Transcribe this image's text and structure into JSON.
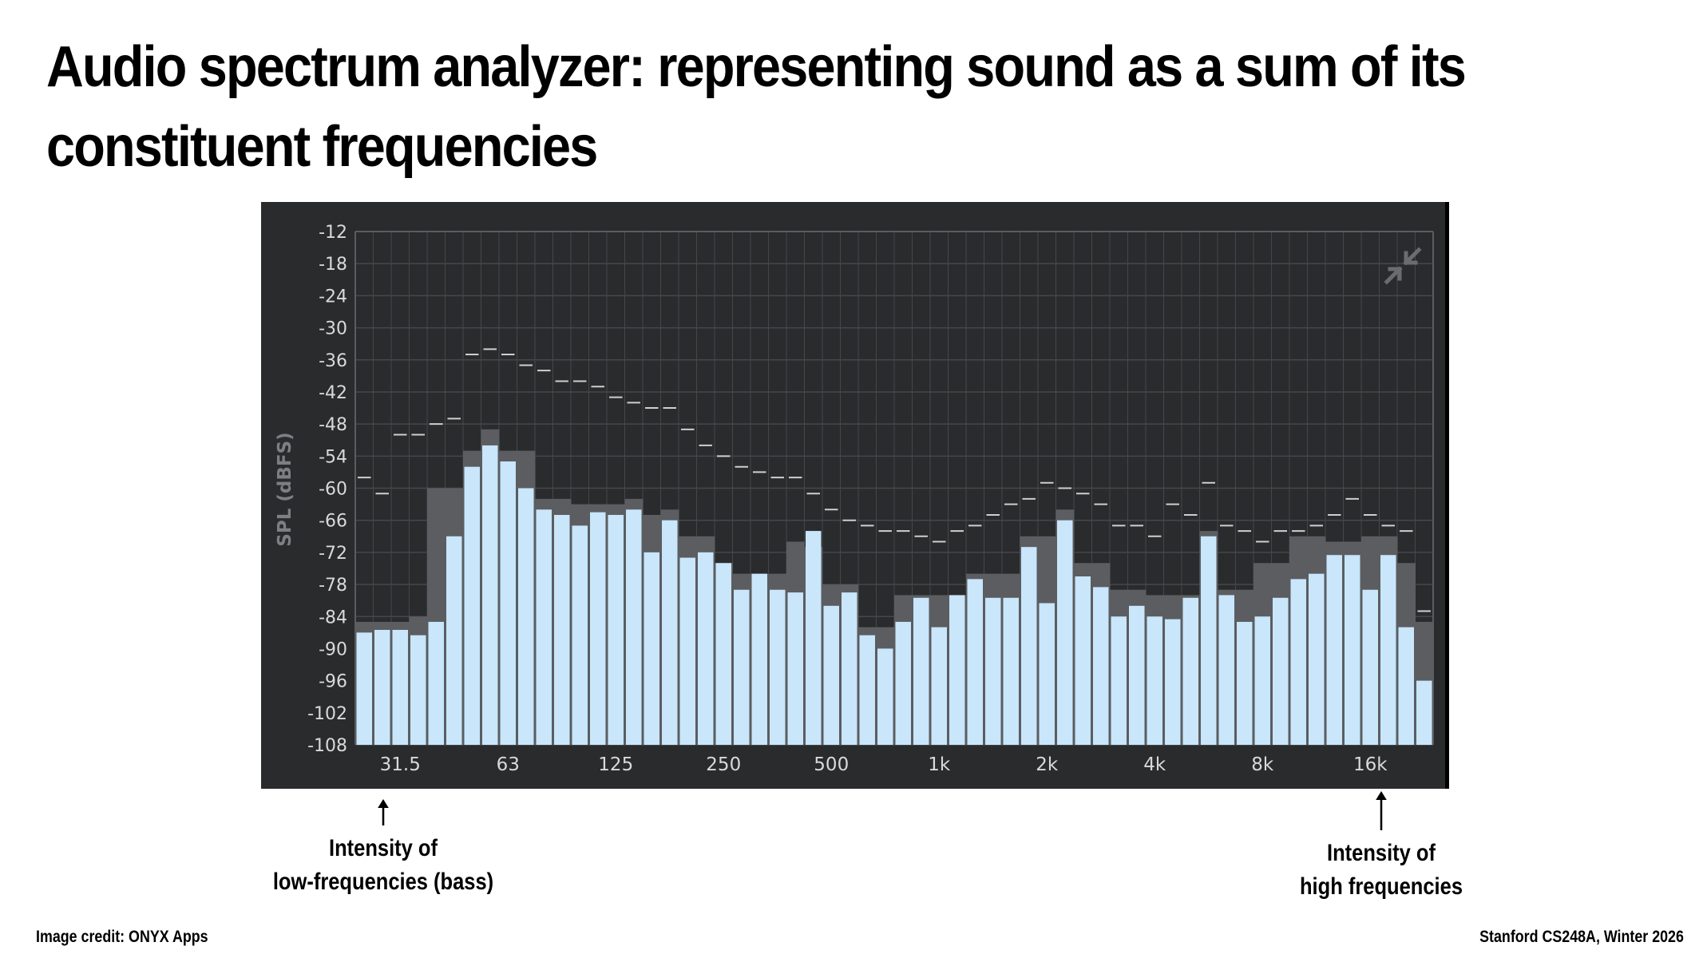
{
  "slide": {
    "title": "Audio spectrum analyzer: representing sound as a sum of its constituent frequencies",
    "credit": "Image credit: ONYX Apps",
    "course": "Stanford CS248A, Winter 2026"
  },
  "annotations": {
    "low_line1": "Intensity of",
    "low_line2": "low-frequencies (bass)",
    "high_line1": "Intensity of",
    "high_line2": "high frequencies"
  },
  "colors": {
    "panel_background": "#2a2b2d",
    "bar": "#c9e6fb",
    "peak_hold": "#5b5d61",
    "peak_marker": "#cfcfcf",
    "grid": "#45474a",
    "text": "#d9d9d9"
  },
  "icons": {
    "corner": "collapse-arrows-icon"
  },
  "chart_data": {
    "type": "bar",
    "ylabel": "SPL (dBFS)",
    "ylim": [
      -108,
      -12
    ],
    "yticks": [
      "-12",
      "-18",
      "-24",
      "-30",
      "-36",
      "-42",
      "-48",
      "-54",
      "-60",
      "-66",
      "-72",
      "-78",
      "-84",
      "-90",
      "-96",
      "-102",
      "-108"
    ],
    "xtick_labels": [
      "31.5",
      "63",
      "125",
      "250",
      "500",
      "1k",
      "2k",
      "4k",
      "8k",
      "16k"
    ],
    "grid": true,
    "series": [
      {
        "values": [
          -87,
          -86.5,
          -86.5,
          -87.5,
          -85,
          -69,
          -56,
          -52,
          -55,
          -60,
          -64,
          -65,
          -67,
          -64.5,
          -65,
          -64,
          -72,
          -66,
          -73,
          -72,
          -74,
          -79,
          -76,
          -79,
          -79.5,
          -68,
          -82,
          -79.5,
          -87.5,
          -90,
          -85,
          -80.5,
          -86,
          -80,
          -77,
          -80.5,
          -80.5,
          -71,
          -81.5,
          -66,
          -76.5,
          -78.5,
          -84,
          -82,
          -84,
          -84.5,
          -80.5,
          -69,
          -80,
          -85,
          -84,
          -80.5,
          -77,
          -76,
          -72.5,
          -72.5,
          -79,
          -72.5,
          -86,
          -96
        ]
      },
      {
        "values": [
          -85,
          -85,
          -85,
          -84,
          -60,
          -60,
          -53,
          -49,
          -53,
          -53,
          -62,
          -62,
          -63,
          -63,
          -63,
          -62,
          -65,
          -64,
          -69,
          -69,
          -74,
          -76,
          -76,
          -76,
          -70,
          -71,
          -78,
          -78,
          -86,
          -86,
          -80,
          -80,
          -80,
          -80,
          -76,
          -76,
          -76,
          -69,
          -69,
          -64,
          -74,
          -74,
          -79,
          -79,
          -80,
          -80,
          -80,
          -68,
          -79,
          -79,
          -74,
          -74,
          -69,
          -69,
          -70,
          -70,
          -69,
          -69,
          -74,
          -85
        ]
      },
      {
        "values": [
          -58,
          -61,
          -50,
          -50,
          -48,
          -47,
          -35,
          -34,
          -35,
          -37,
          -38,
          -40,
          -40,
          -41,
          -43,
          -44,
          -45,
          -45,
          -49,
          -52,
          -54,
          -56,
          -57,
          -58,
          -58,
          -61,
          -64,
          -66,
          -67,
          -68,
          -68,
          -69,
          -70,
          -68,
          -67,
          -65,
          -63,
          -62,
          -59,
          -60,
          -61,
          -63,
          -67,
          -67,
          -69,
          -63,
          -65,
          -59,
          -67,
          -68,
          -70,
          -68,
          -68,
          -67,
          -65,
          -62,
          -65,
          -67,
          -68,
          -83
        ]
      }
    ]
  }
}
